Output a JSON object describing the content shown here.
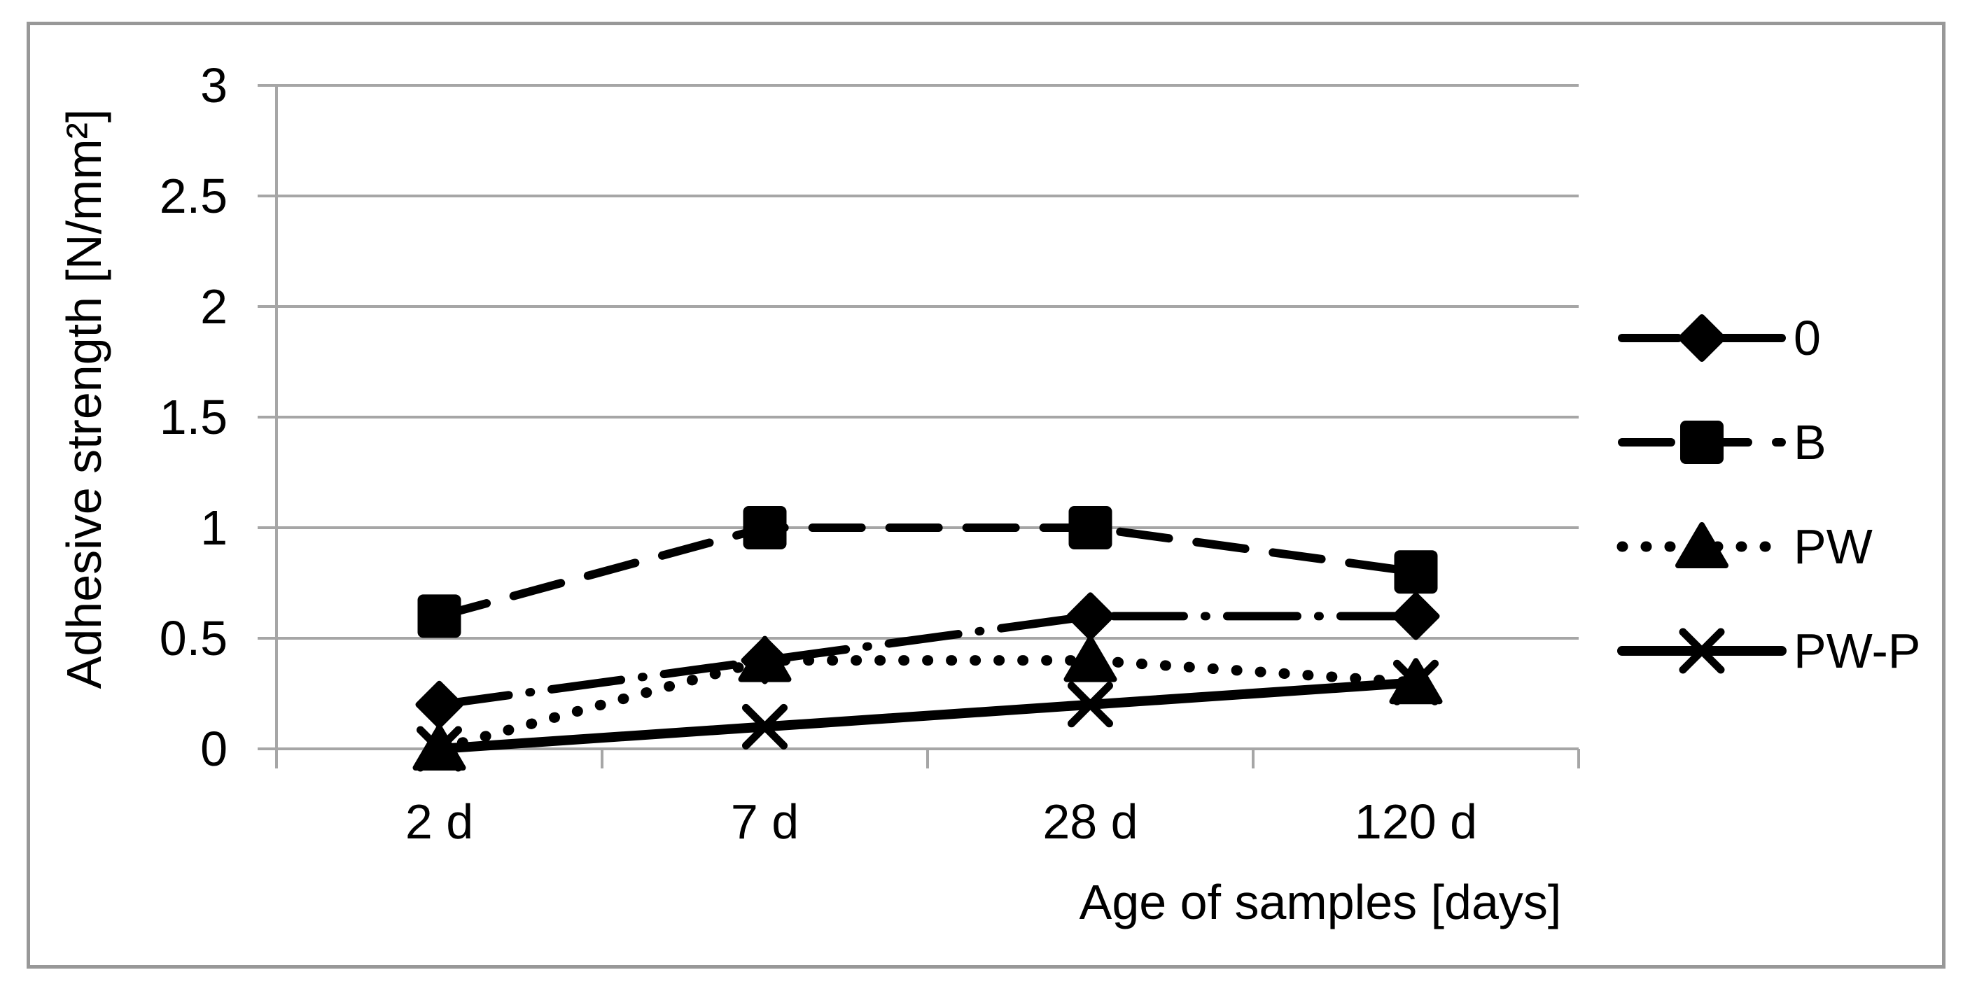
{
  "figure": {
    "background": "#ffffff",
    "border_color": "#989898",
    "gridline_color": "#A6A6A6",
    "series_color": "#000000"
  },
  "chart_data": {
    "type": "line",
    "title": "",
    "xlabel": "Age of samples [days]",
    "ylabel": "Adhesive strength [N/mm²]",
    "categories": [
      "2 d",
      "7 d",
      "28 d",
      "120 d"
    ],
    "ylim": [
      0,
      3
    ],
    "ytick_interval": 0.5,
    "yticks_top_to_bottom": [
      "3",
      "2.5",
      "2",
      "1.5",
      "1",
      "0.5",
      "0"
    ],
    "grid": true,
    "legend_position": "right-center",
    "series": [
      {
        "name": "0",
        "marker": "diamond",
        "line_style": "long-dash-dot",
        "color": "#000000",
        "values": [
          0.2,
          0.4,
          0.6,
          0.6
        ]
      },
      {
        "name": "B",
        "marker": "square",
        "line_style": "dashed",
        "color": "#000000",
        "values": [
          0.6,
          1.0,
          1.0,
          0.8
        ]
      },
      {
        "name": "PW",
        "marker": "triangle",
        "line_style": "dotted",
        "color": "#000000",
        "values": [
          0.0,
          0.4,
          0.4,
          0.3
        ]
      },
      {
        "name": "PW-P",
        "marker": "x",
        "line_style": "solid",
        "color": "#000000",
        "values": [
          0.0,
          0.1,
          0.2,
          0.3
        ]
      }
    ]
  }
}
